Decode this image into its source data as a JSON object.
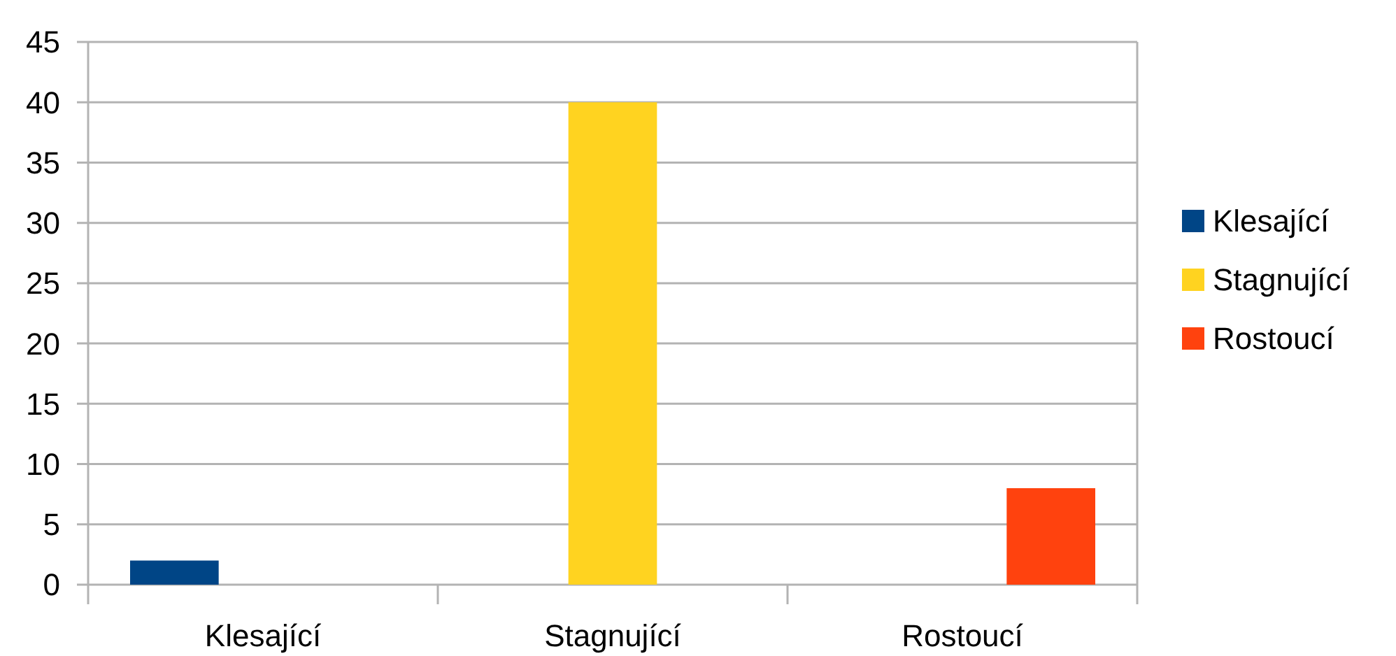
{
  "chart_data": {
    "type": "bar",
    "categories": [
      "Klesající",
      "Stagnující",
      "Rostoucí"
    ],
    "series": [
      {
        "name": "Klesající",
        "color": "#004586",
        "values": [
          2,
          null,
          null
        ]
      },
      {
        "name": "Stagnující",
        "color": "#ffd320",
        "values": [
          null,
          40,
          null
        ]
      },
      {
        "name": "Rostoucí",
        "color": "#ff420e",
        "values": [
          null,
          null,
          8
        ]
      }
    ],
    "ylim": [
      0,
      45
    ],
    "yticks": [
      0,
      5,
      10,
      15,
      20,
      25,
      30,
      35,
      40,
      45
    ],
    "grid": "y",
    "legend": "right"
  }
}
